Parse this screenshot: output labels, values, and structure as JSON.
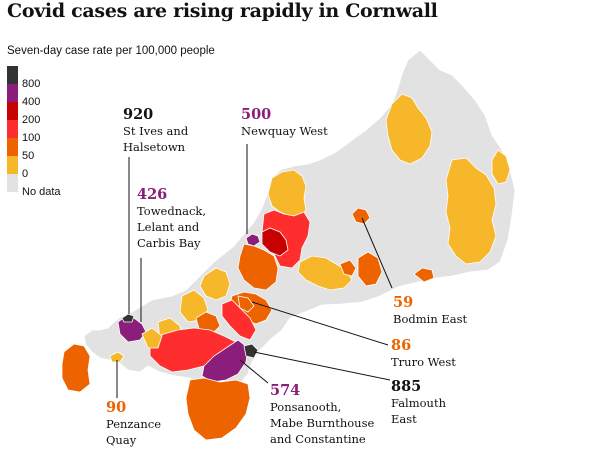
{
  "title": "Covid cases are rising rapidly in Cornwall",
  "subtitle": "Seven-day case rate per 100,000 people",
  "colors": {
    "800": "#333333",
    "400": "#8b1e7a",
    "200": "#c70000",
    "100": "#ff2e2e",
    "50": "#ed6300",
    "0": "#f6b72b",
    "none": "#e2e2e2",
    "purple_text": "#8b1e7a",
    "orange_text": "#ed6300",
    "dark_text": "#121212"
  },
  "legend": [
    {
      "label": "800",
      "color": "#333333"
    },
    {
      "label": "400",
      "color": "#8b1e7a"
    },
    {
      "label": "200",
      "color": "#c70000"
    },
    {
      "label": "100",
      "color": "#ff2e2e"
    },
    {
      "label": "50",
      "color": "#ed6300"
    },
    {
      "label": "0",
      "color": "#f6b72b"
    },
    {
      "label": "No data",
      "color": "#e2e2e2"
    }
  ],
  "annotations": {
    "st_ives": {
      "value": "920",
      "label_1": "St Ives and",
      "label_2": "Halsetown"
    },
    "newquay": {
      "value": "500",
      "label_1": "Newquay West"
    },
    "towednack": {
      "value": "426",
      "label_1": "Towednack,",
      "label_2": "Lelant and",
      "label_3": "Carbis Bay"
    },
    "bodmin": {
      "value": "59",
      "label_1": "Bodmin East"
    },
    "truro": {
      "value": "86",
      "label_1": "Truro West"
    },
    "falmouth": {
      "value": "885",
      "label_1": "Falmouth",
      "label_2": "East"
    },
    "ponsanooth": {
      "value": "574",
      "label_1": "Ponsanooth,",
      "label_2": "Mabe Burnthouse",
      "label_3": "and Constantine"
    },
    "penzance": {
      "value": "90",
      "label_1": "Penzance",
      "label_2": "Quay"
    }
  }
}
